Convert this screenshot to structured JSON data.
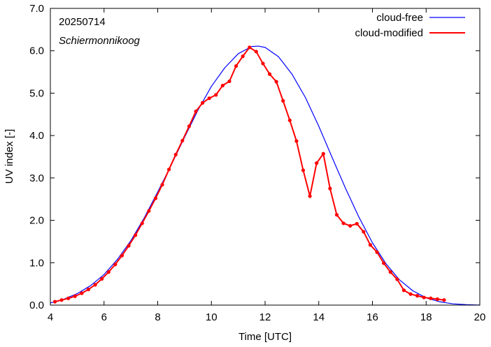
{
  "chart_data": {
    "type": "line",
    "annotations": {
      "date": "20250714",
      "location": "Schiermonnikoog"
    },
    "xlabel": "Time  [UTC]",
    "ylabel": "UV index  [-]",
    "xlim": [
      4,
      20
    ],
    "ylim": [
      0,
      7
    ],
    "x_ticks": [
      4,
      6,
      8,
      10,
      12,
      14,
      16,
      18,
      20
    ],
    "x_tick_labels": [
      "4",
      "6",
      "8",
      "10",
      "12",
      "14",
      "16",
      "18",
      "20"
    ],
    "y_ticks": [
      0,
      1,
      2,
      3,
      4,
      5,
      6,
      7
    ],
    "y_tick_labels": [
      "0.0",
      "1.0",
      "2.0",
      "3.0",
      "4.0",
      "5.0",
      "6.0",
      "7.0"
    ],
    "grid": false,
    "legend_position": "top-right",
    "series": [
      {
        "name": "cloud-free",
        "color": "#0000ff",
        "marker": false,
        "x": [
          4.0,
          4.5,
          5.0,
          5.5,
          6.0,
          6.5,
          7.0,
          7.5,
          8.0,
          8.5,
          9.0,
          9.5,
          10.0,
          10.5,
          11.0,
          11.5,
          11.75,
          12.0,
          12.5,
          13.0,
          13.5,
          14.0,
          14.5,
          15.0,
          15.5,
          16.0,
          16.5,
          17.0,
          17.5,
          18.0,
          18.5,
          19.0,
          19.5,
          20.0
        ],
        "y": [
          0.05,
          0.14,
          0.27,
          0.46,
          0.72,
          1.08,
          1.52,
          2.06,
          2.67,
          3.3,
          3.96,
          4.6,
          5.16,
          5.6,
          5.93,
          6.1,
          6.11,
          6.08,
          5.86,
          5.45,
          4.9,
          4.22,
          3.48,
          2.75,
          2.07,
          1.47,
          0.98,
          0.6,
          0.34,
          0.17,
          0.08,
          0.03,
          0.01,
          0.0
        ]
      },
      {
        "name": "cloud-modified",
        "color": "#ff0000",
        "marker": true,
        "x": [
          4.17,
          4.42,
          4.67,
          4.92,
          5.17,
          5.42,
          5.67,
          5.92,
          6.17,
          6.42,
          6.67,
          6.92,
          7.17,
          7.42,
          7.67,
          7.92,
          8.17,
          8.42,
          8.67,
          8.92,
          9.17,
          9.42,
          9.67,
          9.92,
          10.17,
          10.42,
          10.67,
          10.92,
          11.17,
          11.42,
          11.67,
          11.92,
          12.17,
          12.42,
          12.67,
          12.92,
          13.17,
          13.42,
          13.67,
          13.92,
          14.17,
          14.42,
          14.67,
          14.92,
          15.17,
          15.42,
          15.67,
          15.92,
          16.17,
          16.42,
          16.67,
          16.92,
          17.17,
          17.42,
          17.67,
          17.92,
          18.17,
          18.42,
          18.67
        ],
        "y": [
          0.08,
          0.12,
          0.16,
          0.21,
          0.28,
          0.37,
          0.48,
          0.62,
          0.78,
          0.96,
          1.17,
          1.4,
          1.65,
          1.93,
          2.22,
          2.52,
          2.84,
          3.2,
          3.55,
          3.88,
          4.22,
          4.57,
          4.77,
          4.88,
          4.96,
          5.18,
          5.28,
          5.64,
          5.87,
          6.08,
          5.98,
          5.7,
          5.45,
          5.27,
          4.82,
          4.36,
          3.87,
          3.18,
          2.57,
          3.35,
          3.57,
          2.75,
          2.13,
          1.93,
          1.87,
          1.92,
          1.73,
          1.42,
          1.25,
          0.99,
          0.78,
          0.61,
          0.35,
          0.26,
          0.22,
          0.18,
          0.16,
          0.14,
          0.12
        ]
      }
    ]
  }
}
